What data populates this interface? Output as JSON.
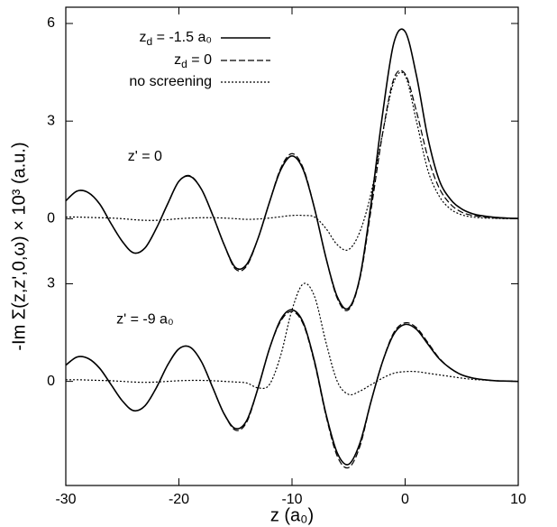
{
  "chart_data": [
    {
      "type": "line",
      "xlabel": "z (a₀)",
      "ylabel": "-Im Σ(z,z',0,ω) × 10³ (a.u.)",
      "annotation": "z' = 0",
      "xlim": [
        -30,
        10
      ],
      "xticks": [
        -30,
        -20,
        -10,
        0,
        10
      ],
      "ylim": [
        -8.2,
        6.5
      ],
      "yticks": [
        0,
        3,
        6
      ],
      "x": [
        -30,
        -29,
        -28,
        -27,
        -26,
        -25,
        -24,
        -23,
        -22,
        -21,
        -20,
        -19,
        -18,
        -17,
        -16,
        -15,
        -14,
        -13,
        -12,
        -11,
        -10,
        -9,
        -8,
        -7,
        -6,
        -5,
        -4,
        -3,
        -2,
        -1,
        0,
        1,
        2,
        3,
        4,
        5,
        6,
        7,
        8,
        9,
        10
      ],
      "series": [
        {
          "name": "zd = -1.5 a₀",
          "color": "#000000",
          "dash": "solid",
          "values": [
            0.55,
            0.85,
            0.8,
            0.45,
            -0.15,
            -0.7,
            -1.05,
            -0.9,
            -0.3,
            0.45,
            1.15,
            1.3,
            0.9,
            0.1,
            -0.8,
            -1.5,
            -1.4,
            -0.6,
            0.5,
            1.5,
            1.93,
            1.5,
            0.3,
            -1.2,
            -2.4,
            -2.75,
            -1.8,
            0.5,
            3.2,
            5.4,
            5.75,
            4.4,
            2.5,
            1.2,
            0.6,
            0.3,
            0.15,
            0.08,
            0.04,
            0.02,
            0.01
          ]
        },
        {
          "name": "zd = 0",
          "color": "#000000",
          "dash": "dashed",
          "values": [
            0.55,
            0.85,
            0.8,
            0.45,
            -0.15,
            -0.7,
            -1.05,
            -0.9,
            -0.3,
            0.45,
            1.15,
            1.32,
            0.9,
            0.1,
            -0.8,
            -1.55,
            -1.45,
            -0.6,
            0.5,
            1.55,
            2.0,
            1.55,
            0.3,
            -1.2,
            -2.45,
            -2.8,
            -1.85,
            0.3,
            2.6,
            4.3,
            4.45,
            3.3,
            1.9,
            0.95,
            0.45,
            0.2,
            0.1,
            0.05,
            0.02,
            0.01,
            0.0
          ]
        },
        {
          "name": "no screening",
          "color": "#000000",
          "dash": "dotted",
          "values": [
            0.05,
            0.05,
            0.04,
            0.03,
            0.02,
            0.0,
            -0.03,
            -0.05,
            -0.05,
            -0.03,
            0.0,
            0.02,
            0.03,
            0.03,
            0.02,
            0.0,
            -0.02,
            -0.01,
            0.02,
            0.06,
            0.1,
            0.1,
            0.05,
            -0.3,
            -0.8,
            -0.95,
            -0.4,
            0.8,
            2.6,
            4.2,
            4.4,
            3.0,
            1.5,
            0.7,
            0.3,
            0.12,
            0.05,
            0.02,
            0.01,
            0.0,
            0.0
          ]
        }
      ]
    },
    {
      "type": "line",
      "annotation": "z' = -9 a₀",
      "xlim": [
        -30,
        10
      ],
      "ylim": [
        -3.2,
        11.5
      ],
      "yticks": [
        0,
        3
      ],
      "x": [
        -30,
        -29,
        -28,
        -27,
        -26,
        -25,
        -24,
        -23,
        -22,
        -21,
        -20,
        -19,
        -18,
        -17,
        -16,
        -15,
        -14,
        -13,
        -12,
        -11,
        -10,
        -9,
        -8,
        -7,
        -6,
        -5,
        -4,
        -3,
        -2,
        -1,
        0,
        1,
        2,
        3,
        4,
        5,
        6,
        7,
        8,
        9,
        10
      ],
      "series": [
        {
          "color": "#000000",
          "dash": "solid",
          "values": [
            0.5,
            0.75,
            0.7,
            0.4,
            -0.1,
            -0.6,
            -0.9,
            -0.75,
            -0.2,
            0.5,
            1.0,
            1.05,
            0.6,
            -0.2,
            -1.0,
            -1.45,
            -1.2,
            -0.2,
            1.0,
            1.9,
            2.2,
            1.8,
            0.6,
            -1.0,
            -2.2,
            -2.55,
            -1.9,
            -0.6,
            0.6,
            1.45,
            1.75,
            1.6,
            1.15,
            0.7,
            0.4,
            0.2,
            0.1,
            0.05,
            0.02,
            0.01,
            0.0
          ]
        },
        {
          "color": "#000000",
          "dash": "dashed",
          "values": [
            0.5,
            0.75,
            0.7,
            0.4,
            -0.1,
            -0.6,
            -0.9,
            -0.75,
            -0.2,
            0.5,
            1.0,
            1.05,
            0.6,
            -0.2,
            -1.0,
            -1.5,
            -1.25,
            -0.2,
            1.0,
            1.85,
            2.15,
            1.75,
            0.55,
            -1.05,
            -2.3,
            -2.65,
            -2.0,
            -0.6,
            0.6,
            1.5,
            1.8,
            1.65,
            1.2,
            0.72,
            0.4,
            0.2,
            0.1,
            0.05,
            0.02,
            0.01,
            0.0
          ]
        },
        {
          "color": "#000000",
          "dash": "dotted",
          "values": [
            0.05,
            0.05,
            0.04,
            0.03,
            0.02,
            0.0,
            -0.02,
            -0.03,
            -0.02,
            0.0,
            0.02,
            0.03,
            0.03,
            0.02,
            0.0,
            -0.02,
            -0.05,
            -0.2,
            -0.1,
            0.8,
            2.2,
            3.0,
            2.6,
            1.2,
            0.0,
            -0.4,
            -0.3,
            -0.1,
            0.1,
            0.25,
            0.3,
            0.3,
            0.25,
            0.2,
            0.15,
            0.1,
            0.06,
            0.04,
            0.02,
            0.01,
            0.0
          ]
        }
      ]
    }
  ]
}
